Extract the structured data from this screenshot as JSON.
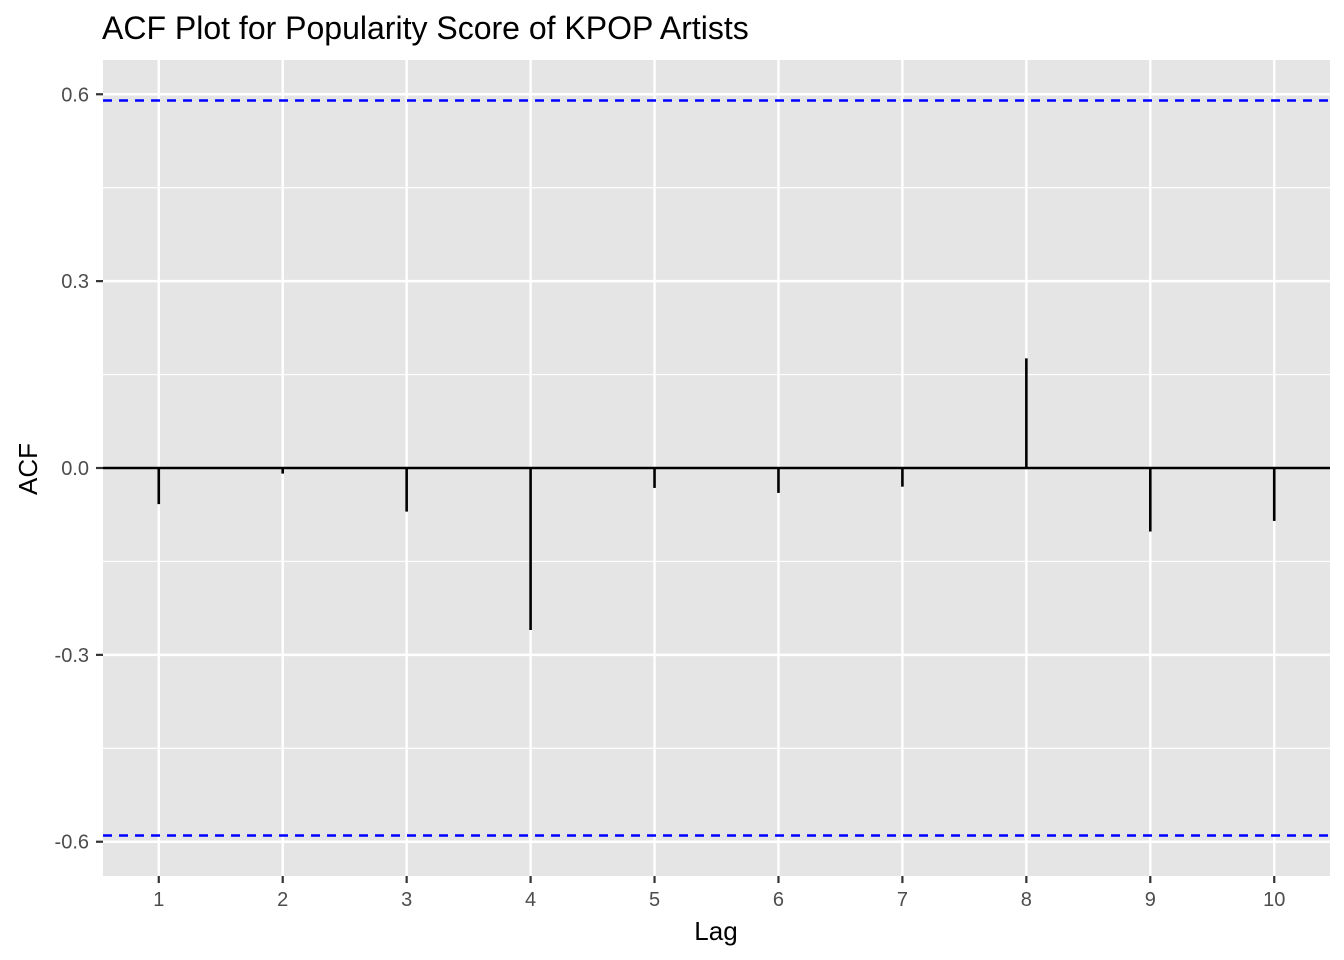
{
  "chart_data": {
    "type": "bar",
    "title": "ACF Plot for Popularity Score of KPOP Artists",
    "xlabel": "Lag",
    "ylabel": "ACF",
    "x": [
      1,
      2,
      3,
      4,
      5,
      6,
      7,
      8,
      9,
      10
    ],
    "values": [
      -0.058,
      -0.009,
      -0.07,
      -0.26,
      -0.032,
      -0.04,
      -0.03,
      0.176,
      -0.102,
      -0.085
    ],
    "x_ticks": [
      "1",
      "2",
      "3",
      "4",
      "5",
      "6",
      "7",
      "8",
      "9",
      "10"
    ],
    "y_ticks": [
      "-0.6",
      "-0.3",
      "0.0",
      "0.3",
      "0.6"
    ],
    "xlim": [
      0.55,
      10.45
    ],
    "ylim": [
      -0.655,
      0.655
    ],
    "confidence_bound": 0.59,
    "grid": true,
    "colors": {
      "panel_background": "#e5e5e5",
      "grid": "#ffffff",
      "stem": "#000000",
      "confidence_line": "#0000ff"
    }
  }
}
